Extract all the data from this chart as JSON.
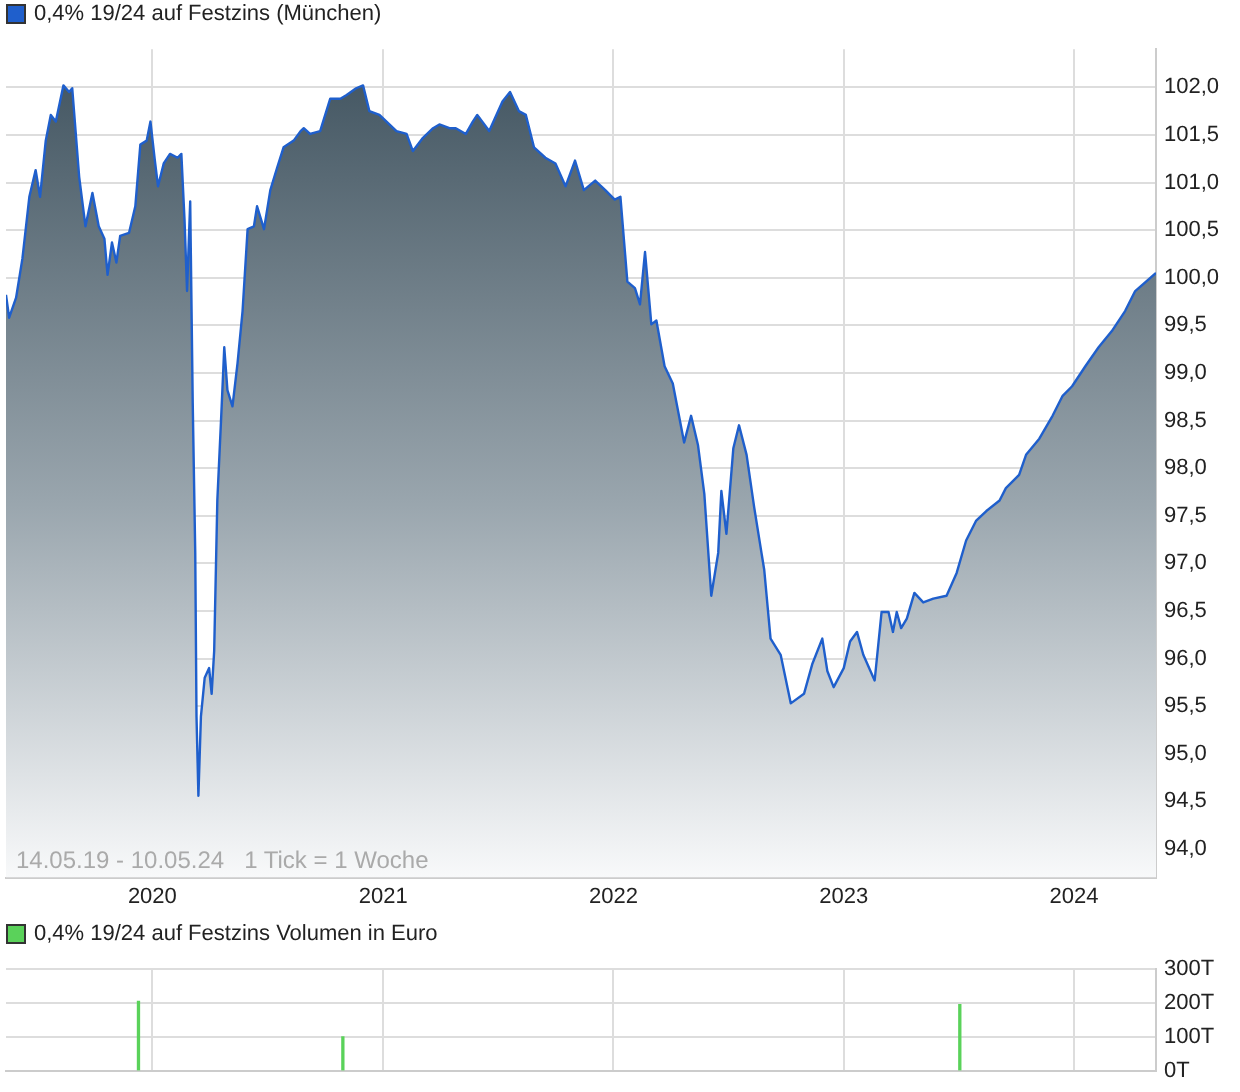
{
  "chart_data": [
    {
      "type": "area",
      "legend": "top left",
      "grid": true,
      "xlim": [
        "2019-05-14",
        "2024-05-10"
      ],
      "ylim": [
        93.7,
        102.4
      ],
      "xticks": [
        {
          "value": "2020-01-01",
          "label": "2020"
        },
        {
          "value": "2021-01-01",
          "label": "2021"
        },
        {
          "value": "2022-01-01",
          "label": "2022"
        },
        {
          "value": "2023-01-01",
          "label": "2023"
        },
        {
          "value": "2024-01-01",
          "label": "2024"
        }
      ],
      "yticks": [
        {
          "value": 94,
          "label": "94,0"
        },
        {
          "value": 94.5,
          "label": "94,5"
        },
        {
          "value": 95,
          "label": "95,0"
        },
        {
          "value": 95.5,
          "label": "95,5"
        },
        {
          "value": 96,
          "label": "96,0"
        },
        {
          "value": 96.5,
          "label": "96,5"
        },
        {
          "value": 97,
          "label": "97,0"
        },
        {
          "value": 97.5,
          "label": "97,5"
        },
        {
          "value": 98,
          "label": "98,0"
        },
        {
          "value": 98.5,
          "label": "98,5"
        },
        {
          "value": 99,
          "label": "99,0"
        },
        {
          "value": 99.5,
          "label": "99,5"
        },
        {
          "value": 100,
          "label": "100,0"
        },
        {
          "value": 100.5,
          "label": "100,5"
        },
        {
          "value": 101,
          "label": "101,0"
        },
        {
          "value": 101.5,
          "label": "101,5"
        },
        {
          "value": 102,
          "label": "102,0"
        }
      ],
      "annotations": [
        "14.05.19 - 10.05.24   1 Tick = 1 Woche"
      ],
      "series": [
        {
          "name": "0,4% 19/24 auf Festzins (München)",
          "color": "#1f5fcc",
          "x": [
            "2019-05-14",
            "2019-05-19",
            "2019-05-30",
            "2019-06-09",
            "2019-06-20",
            "2019-06-30",
            "2019-07-07",
            "2019-07-16",
            "2019-07-24",
            "2019-08-01",
            "2019-08-13",
            "2019-08-22",
            "2019-08-27",
            "2019-09-07",
            "2019-09-17",
            "2019-09-28",
            "2019-10-08",
            "2019-10-17",
            "2019-10-22",
            "2019-10-29",
            "2019-11-05",
            "2019-11-11",
            "2019-11-25",
            "2019-12-05",
            "2019-12-13",
            "2019-12-23",
            "2019-12-29",
            "2020-01-05",
            "2020-01-10",
            "2020-01-19",
            "2020-01-29",
            "2020-02-10",
            "2020-02-16",
            "2020-02-21",
            "2020-02-25",
            "2020-03-01",
            "2020-03-05",
            "2020-03-09",
            "2020-03-11",
            "2020-03-14",
            "2020-03-18",
            "2020-03-24",
            "2020-03-31",
            "2020-04-04",
            "2020-04-08",
            "2020-04-13",
            "2020-04-19",
            "2020-04-24",
            "2020-04-29",
            "2020-05-07",
            "2020-05-15",
            "2020-05-23",
            "2020-05-31",
            "2020-06-10",
            "2020-06-15",
            "2020-06-26",
            "2020-07-06",
            "2020-07-17",
            "2020-07-27",
            "2020-08-12",
            "2020-08-23",
            "2020-08-28",
            "2020-09-07",
            "2020-09-23",
            "2020-10-09",
            "2020-10-25",
            "2020-11-04",
            "2020-11-19",
            "2020-11-30",
            "2020-12-10",
            "2020-12-26",
            "2021-01-22",
            "2021-02-07",
            "2021-02-17",
            "2021-03-05",
            "2021-03-21",
            "2021-03-31",
            "2021-04-16",
            "2021-04-26",
            "2021-05-12",
            "2021-05-23",
            "2021-05-30",
            "2021-06-18",
            "2021-07-09",
            "2021-07-21",
            "2021-08-04",
            "2021-08-15",
            "2021-08-28",
            "2021-09-15",
            "2021-10-01",
            "2021-10-17",
            "2021-11-01",
            "2021-11-15",
            "2021-12-03",
            "2021-12-19",
            "2022-01-03",
            "2022-01-12",
            "2022-01-23",
            "2022-02-04",
            "2022-02-12",
            "2022-02-20",
            "2022-03-02",
            "2022-03-10",
            "2022-03-23",
            "2022-04-05",
            "2022-04-23",
            "2022-05-04",
            "2022-05-15",
            "2022-05-25",
            "2022-06-05",
            "2022-06-16",
            "2022-06-21",
            "2022-06-29",
            "2022-07-10",
            "2022-07-19",
            "2022-07-31",
            "2022-08-12",
            "2022-08-28",
            "2022-09-07",
            "2022-09-23",
            "2022-10-09",
            "2022-10-30",
            "2022-11-12",
            "2022-11-28",
            "2022-12-06",
            "2022-12-16",
            "2023-01-01",
            "2023-01-11",
            "2023-01-22",
            "2023-02-01",
            "2023-02-19",
            "2023-03-02",
            "2023-03-13",
            "2023-03-20",
            "2023-03-26",
            "2023-04-02",
            "2023-04-11",
            "2023-04-23",
            "2023-05-07",
            "2023-05-23",
            "2023-06-13",
            "2023-06-29",
            "2023-07-14",
            "2023-07-30",
            "2023-08-15",
            "2023-09-05",
            "2023-09-15",
            "2023-10-06",
            "2023-10-17",
            "2023-11-07",
            "2023-11-28",
            "2023-12-14",
            "2023-12-29",
            "2024-01-19",
            "2024-02-09",
            "2024-03-01",
            "2024-03-22",
            "2024-04-07",
            "2024-05-10"
          ],
          "values": [
            99.82,
            99.58,
            99.79,
            100.2,
            100.85,
            101.13,
            100.85,
            101.44,
            101.71,
            101.64,
            102.02,
            101.95,
            101.99,
            101.06,
            100.54,
            100.89,
            100.54,
            100.41,
            100.03,
            100.37,
            100.16,
            100.44,
            100.47,
            100.75,
            101.4,
            101.44,
            101.64,
            101.23,
            100.96,
            101.2,
            101.3,
            101.26,
            101.3,
            100.61,
            99.86,
            100.8,
            98.69,
            97.11,
            95.39,
            94.56,
            95.39,
            95.8,
            95.9,
            95.63,
            96.08,
            97.66,
            98.52,
            99.27,
            98.82,
            98.65,
            99.1,
            99.65,
            100.51,
            100.54,
            100.75,
            100.51,
            100.92,
            101.16,
            101.37,
            101.44,
            101.54,
            101.57,
            101.51,
            101.54,
            101.88,
            101.88,
            101.92,
            101.99,
            102.02,
            101.75,
            101.71,
            101.54,
            101.51,
            101.33,
            101.47,
            101.57,
            101.61,
            101.57,
            101.57,
            101.51,
            101.64,
            101.71,
            101.54,
            101.85,
            101.95,
            101.75,
            101.71,
            101.37,
            101.26,
            101.2,
            100.96,
            101.23,
            100.92,
            101.02,
            100.92,
            100.82,
            100.85,
            99.96,
            99.89,
            99.72,
            100.27,
            99.51,
            99.55,
            99.07,
            98.89,
            98.27,
            98.55,
            98.24,
            97.73,
            96.66,
            97.11,
            97.76,
            97.31,
            98.21,
            98.45,
            98.14,
            97.59,
            96.93,
            96.21,
            96.04,
            95.53,
            95.63,
            95.94,
            96.21,
            95.87,
            95.7,
            95.9,
            96.18,
            96.28,
            96.04,
            95.77,
            96.49,
            96.49,
            96.28,
            96.49,
            96.32,
            96.42,
            96.69,
            96.59,
            96.63,
            96.66,
            96.9,
            97.24,
            97.45,
            97.55,
            97.66,
            97.79,
            97.93,
            98.14,
            98.31,
            98.55,
            98.76,
            98.86,
            99.07,
            99.27,
            99.44,
            99.65,
            99.86,
            100.05
          ]
        }
      ]
    },
    {
      "type": "bar",
      "legend": "top left",
      "grid": true,
      "tick_labels": "y",
      "xlim": [
        "2019-05-14",
        "2024-05-10"
      ],
      "ylim": [
        0,
        300
      ],
      "xticks": [
        {
          "value": "2020-01-01",
          "label": null
        },
        {
          "value": "2021-01-01",
          "label": null
        },
        {
          "value": "2022-01-01",
          "label": null
        },
        {
          "value": "2023-01-01",
          "label": null
        },
        {
          "value": "2024-01-01",
          "label": null
        }
      ],
      "yticks": [
        {
          "value": 0,
          "label": "0T"
        },
        {
          "value": 100,
          "label": "100T"
        },
        {
          "value": 200,
          "label": "200T"
        },
        {
          "value": 300,
          "label": "300T"
        }
      ],
      "series": [
        {
          "name": "0,4% 19/24 auf Festzins Volumen in Euro",
          "color": "#5ad25a",
          "x": [
            "2019-12-10",
            "2020-10-29",
            "2023-07-04"
          ],
          "values": [
            205,
            100,
            195
          ]
        }
      ]
    }
  ]
}
